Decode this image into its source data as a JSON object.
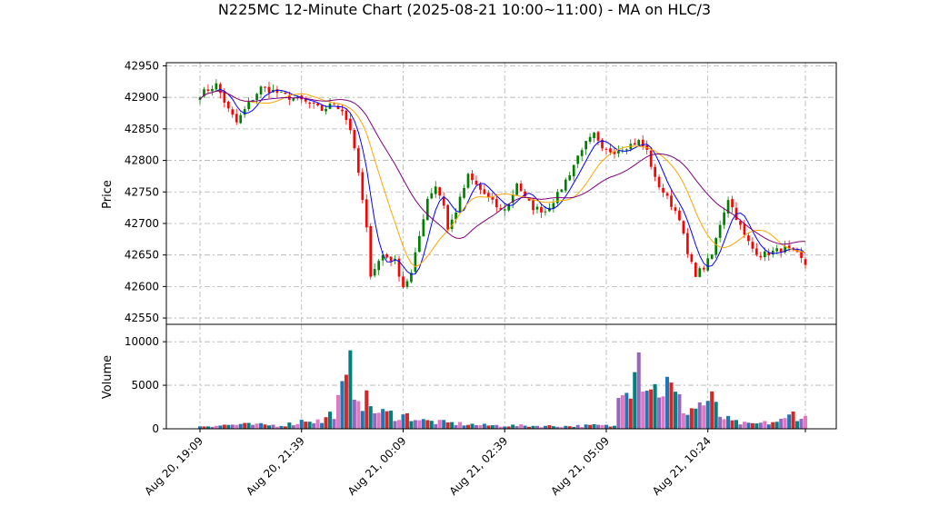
{
  "chart_data": {
    "type": "candlestick",
    "title": "N225MC 12-Minute Chart (2025-08-21 10:00~11:00) - MA on HLC/3",
    "price_panel": {
      "ylabel": "Price",
      "ylim": [
        42540,
        42955
      ],
      "yticks": [
        42550,
        42600,
        42650,
        42700,
        42750,
        42800,
        42850,
        42900,
        42950
      ],
      "ytick_labels": [
        "42550",
        "42600",
        "42650",
        "42700",
        "42750",
        "42800",
        "42850",
        "42900",
        "42950"
      ],
      "grid": true
    },
    "volume_panel": {
      "ylabel": "Volume",
      "ylim": [
        0,
        12000
      ],
      "yticks": [
        0,
        5000,
        10000
      ],
      "ytick_labels": [
        "0",
        "5000",
        "10000"
      ],
      "grid": true
    },
    "x_tick_labels": [
      "Aug 20, 19:09",
      "Aug 20, 21:39",
      "Aug 21, 00:09",
      "Aug 21, 02:39",
      "Aug 21, 05:09",
      "Aug 21, 10:24"
    ],
    "x_tick_bar_index": [
      0,
      25,
      50,
      75,
      100,
      125
    ],
    "n_bars": 150,
    "price_anchors": [
      [
        0,
        42905
      ],
      [
        4,
        42920
      ],
      [
        7,
        42880
      ],
      [
        9,
        42860
      ],
      [
        12,
        42890
      ],
      [
        15,
        42915
      ],
      [
        18,
        42910
      ],
      [
        22,
        42900
      ],
      [
        25,
        42895
      ],
      [
        30,
        42880
      ],
      [
        33,
        42890
      ],
      [
        35,
        42880
      ],
      [
        37,
        42850
      ],
      [
        39,
        42780
      ],
      [
        41,
        42690
      ],
      [
        42,
        42620
      ],
      [
        45,
        42650
      ],
      [
        48,
        42640
      ],
      [
        50,
        42600
      ],
      [
        52,
        42620
      ],
      [
        54,
        42680
      ],
      [
        56,
        42740
      ],
      [
        58,
        42760
      ],
      [
        60,
        42730
      ],
      [
        61,
        42690
      ],
      [
        63,
        42720
      ],
      [
        66,
        42775
      ],
      [
        68,
        42760
      ],
      [
        71,
        42740
      ],
      [
        74,
        42720
      ],
      [
        76,
        42730
      ],
      [
        78,
        42765
      ],
      [
        80,
        42740
      ],
      [
        82,
        42725
      ],
      [
        85,
        42720
      ],
      [
        88,
        42745
      ],
      [
        91,
        42780
      ],
      [
        94,
        42820
      ],
      [
        97,
        42840
      ],
      [
        99,
        42815
      ],
      [
        102,
        42815
      ],
      [
        104,
        42820
      ],
      [
        106,
        42825
      ],
      [
        108,
        42830
      ],
      [
        110,
        42815
      ],
      [
        112,
        42770
      ],
      [
        115,
        42740
      ],
      [
        118,
        42710
      ],
      [
        120,
        42650
      ],
      [
        122,
        42620
      ],
      [
        124,
        42630
      ],
      [
        126,
        42650
      ],
      [
        128,
        42700
      ],
      [
        130,
        42740
      ],
      [
        132,
        42710
      ],
      [
        134,
        42680
      ],
      [
        136,
        42660
      ],
      [
        138,
        42650
      ],
      [
        141,
        42655
      ],
      [
        144,
        42660
      ],
      [
        147,
        42650
      ],
      [
        149,
        42635
      ]
    ],
    "volume_anchors": [
      [
        0,
        300
      ],
      [
        10,
        500
      ],
      [
        20,
        400
      ],
      [
        24,
        700
      ],
      [
        26,
        1100
      ],
      [
        30,
        800
      ],
      [
        33,
        2000
      ],
      [
        36,
        5000
      ],
      [
        37,
        6400
      ],
      [
        40,
        3500
      ],
      [
        44,
        1800
      ],
      [
        48,
        1600
      ],
      [
        52,
        1400
      ],
      [
        55,
        900
      ],
      [
        60,
        700
      ],
      [
        70,
        400
      ],
      [
        80,
        350
      ],
      [
        90,
        300
      ],
      [
        98,
        400
      ],
      [
        102,
        300
      ],
      [
        104,
        7000
      ],
      [
        106,
        5500
      ],
      [
        107,
        10800
      ],
      [
        109,
        6500
      ],
      [
        112,
        4500
      ],
      [
        115,
        5000
      ],
      [
        118,
        3000
      ],
      [
        120,
        2000
      ],
      [
        123,
        2800
      ],
      [
        126,
        3200
      ],
      [
        128,
        1500
      ],
      [
        131,
        800
      ],
      [
        135,
        500
      ],
      [
        140,
        700
      ],
      [
        144,
        1000
      ],
      [
        146,
        1800
      ],
      [
        149,
        1200
      ]
    ],
    "series": [
      {
        "name": "",
        "kind": "moving-average-short",
        "color": "#0000ff"
      },
      {
        "name": "",
        "kind": "moving-average-mid",
        "color": "#ffa500"
      },
      {
        "name": "",
        "kind": "moving-average-long",
        "color": "#800080"
      }
    ],
    "colors": {
      "up": "#008000",
      "down": "#ff0000",
      "volume_palette": [
        "#1f77b4",
        "#d62728",
        "#008080",
        "#9467bd",
        "#e377c2"
      ]
    }
  }
}
